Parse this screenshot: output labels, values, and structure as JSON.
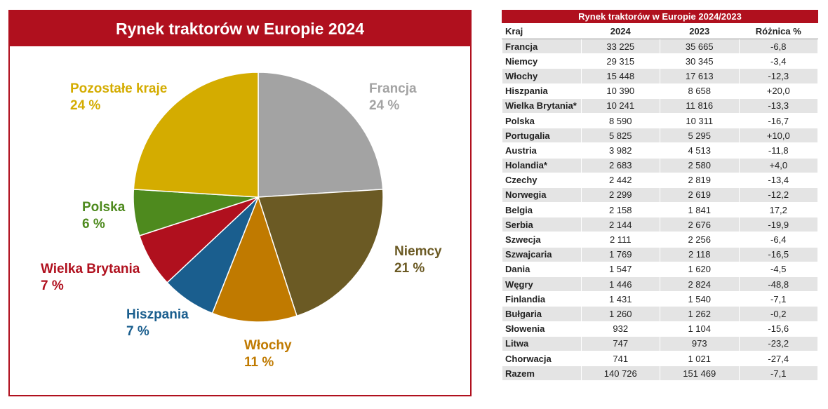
{
  "chart_data": {
    "type": "pie",
    "title": "Rynek traktorów w Europie 2024",
    "categories": [
      "Francja",
      "Niemcy",
      "Włochy",
      "Hiszpania",
      "Wielka Brytania",
      "Polska",
      "Pozostałe kraje"
    ],
    "values": [
      24,
      21,
      11,
      7,
      7,
      6,
      24
    ],
    "value_labels": [
      "24 %",
      "21 %",
      "11 %",
      "7 %",
      "7 %",
      "6 %",
      "24 %"
    ],
    "colors": [
      "#a3a3a3",
      "#6b5a24",
      "#c07a00",
      "#1a5e8e",
      "#b0101e",
      "#4e8a1e",
      "#d4ac00"
    ]
  },
  "table": {
    "title": "Rynek traktorów w Europie 2024/2023",
    "header": [
      "Kraj",
      "2024",
      "2023",
      "Różnica %"
    ],
    "rows": [
      [
        "Francja",
        "33 225",
        "35 665",
        "-6,8"
      ],
      [
        "Niemcy",
        "29 315",
        "30 345",
        "-3,4"
      ],
      [
        "Włochy",
        "15 448",
        "17 613",
        "-12,3"
      ],
      [
        "Hiszpania",
        "10 390",
        "8 658",
        "+20,0"
      ],
      [
        "Wielka Brytania*",
        "10 241",
        "11 816",
        "-13,3"
      ],
      [
        "Polska",
        "8 590",
        "10 311",
        "-16,7"
      ],
      [
        "Portugalia",
        "5 825",
        "5 295",
        "+10,0"
      ],
      [
        "Austria",
        "3 982",
        "4 513",
        "-11,8"
      ],
      [
        "Holandia*",
        "2 683",
        "2 580",
        "+4,0"
      ],
      [
        "Czechy",
        "2 442",
        "2 819",
        "-13,4"
      ],
      [
        "Norwegia",
        "2 299",
        "2 619",
        "-12,2"
      ],
      [
        "Belgia",
        "2 158",
        "1 841",
        "17,2"
      ],
      [
        "Serbia",
        "2 144",
        "2 676",
        "-19,9"
      ],
      [
        "Szwecja",
        "2 111",
        "2 256",
        "-6,4"
      ],
      [
        "Szwajcaria",
        "1 769",
        "2 118",
        "-16,5"
      ],
      [
        "Dania",
        "1 547",
        "1 620",
        "-4,5"
      ],
      [
        "Węgry",
        "1 446",
        "2 824",
        "-48,8"
      ],
      [
        "Finlandia",
        "1 431",
        "1 540",
        "-7,1"
      ],
      [
        "Bułgaria",
        "1 260",
        "1 262",
        "-0,2"
      ],
      [
        "Słowenia",
        "932",
        "1 104",
        "-15,6"
      ],
      [
        "Litwa",
        "747",
        "973",
        "-23,2"
      ],
      [
        "Chorwacja",
        "741",
        "1 021",
        "-27,4"
      ],
      [
        "Razem",
        "140 726",
        "151 469",
        "-7,1"
      ]
    ]
  }
}
